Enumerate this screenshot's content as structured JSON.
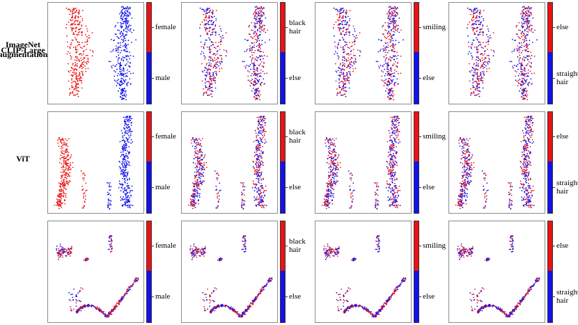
{
  "chart_data": {
    "type": "scatter",
    "rows": [
      {
        "label": "CLIP-Large",
        "layout": "clip"
      },
      {
        "label": "ImageNet augmentation",
        "layout": "imagenet"
      },
      {
        "label": "ViT",
        "layout": "vit"
      }
    ],
    "attributes": [
      {
        "top_label": "female",
        "bottom_label": "male",
        "top_share": 0.46,
        "split": "left-right"
      },
      {
        "top_label": "black hair",
        "bottom_label": "else",
        "top_share": 0.46,
        "split": "mixed-red"
      },
      {
        "top_label": "smiling",
        "bottom_label": "else",
        "top_share": 0.46,
        "split": "mixed-red"
      },
      {
        "top_label": "else",
        "bottom_label": "straight hair",
        "top_share": 0.46,
        "split": "mixed-red"
      }
    ],
    "colors": {
      "top": "#ee1111",
      "bottom": "#1111ee"
    }
  }
}
